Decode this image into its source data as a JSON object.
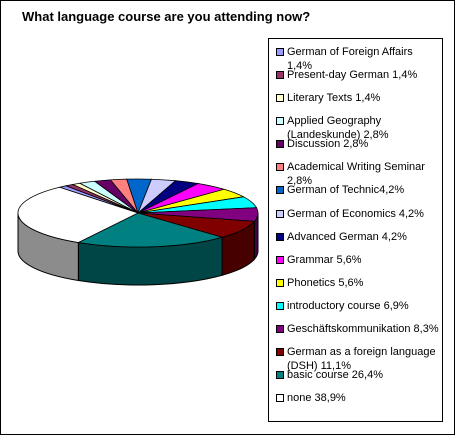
{
  "chart_data": {
    "type": "pie",
    "title": "What language course are you attending now?",
    "slices": [
      {
        "label": "German of Foreign Affairs 1,4%",
        "value": 1.4,
        "color": "#9999ff"
      },
      {
        "label": "Present-day German 1,4%",
        "value": 1.4,
        "color": "#993366"
      },
      {
        "label": "Literary Texts 1,4%",
        "value": 1.4,
        "color": "#ffffcc"
      },
      {
        "label": "Applied Geography (Landeskunde) 2,8%",
        "value": 2.8,
        "color": "#ccffff"
      },
      {
        "label": "Discussion 2,8%",
        "value": 2.8,
        "color": "#660066"
      },
      {
        "label": "Academical Writing Seminar 2,8%",
        "value": 2.8,
        "color": "#ff8080"
      },
      {
        "label": "German of Technic4,2%",
        "value": 4.2,
        "color": "#0066cc"
      },
      {
        "label": "German of Economics 4,2%",
        "value": 4.2,
        "color": "#ccccff"
      },
      {
        "label": "Advanced German 4,2%",
        "value": 4.2,
        "color": "#000080"
      },
      {
        "label": "Grammar 5,6%",
        "value": 5.6,
        "color": "#ff00ff"
      },
      {
        "label": "Phonetics 5,6%",
        "value": 5.6,
        "color": "#ffff00"
      },
      {
        "label": "introductory course 6,9%",
        "value": 6.9,
        "color": "#00ffff"
      },
      {
        "label": "Geschäftskommunikation 8,3%",
        "value": 8.3,
        "color": "#800080"
      },
      {
        "label": "German as a foreign language (DSH) 11,1%",
        "value": 11.1,
        "color": "#800000"
      },
      {
        "label": "basic course 26,4%",
        "value": 26.4,
        "color": "#008080"
      },
      {
        "label": "none 38,9%",
        "value": 38.9,
        "color": "#ffffff"
      }
    ],
    "legend_position": "right"
  }
}
